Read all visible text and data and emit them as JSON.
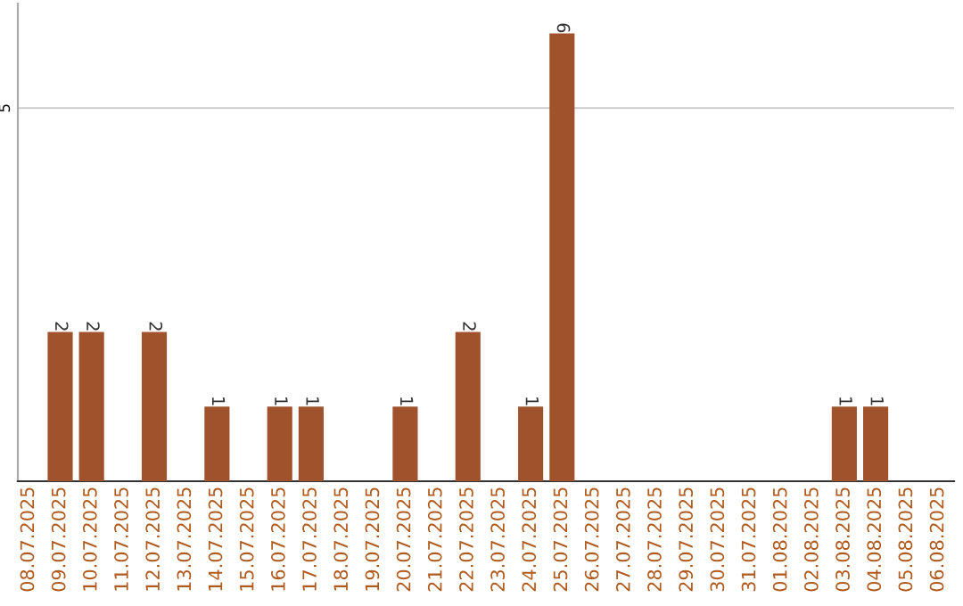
{
  "chart_data": {
    "type": "bar",
    "categories": [
      "08.07.2025",
      "09.07.2025",
      "10.07.2025",
      "11.07.2025",
      "12.07.2025",
      "13.07.2025",
      "14.07.2025",
      "15.07.2025",
      "16.07.2025",
      "17.07.2025",
      "18.07.2025",
      "19.07.2025",
      "20.07.2025",
      "21.07.2025",
      "22.07.2025",
      "23.07.2025",
      "24.07.2025",
      "25.07.2025",
      "26.07.2025",
      "27.07.2025",
      "28.07.2025",
      "29.07.2025",
      "30.07.2025",
      "31.07.2025",
      "01.08.2025",
      "02.08.2025",
      "03.08.2025",
      "04.08.2025",
      "05.08.2025",
      "06.08.2025"
    ],
    "values": [
      0,
      2,
      2,
      0,
      2,
      0,
      1,
      0,
      1,
      1,
      0,
      0,
      1,
      0,
      2,
      0,
      1,
      6,
      0,
      0,
      0,
      0,
      0,
      0,
      0,
      0,
      1,
      1,
      0,
      0
    ],
    "value_labels": [
      null,
      "2",
      "2",
      null,
      "2",
      null,
      "1",
      null,
      "1",
      "1",
      null,
      null,
      "1",
      null,
      "2",
      null,
      "1",
      "6",
      null,
      null,
      null,
      null,
      null,
      null,
      null,
      null,
      "1",
      "1",
      null,
      null
    ],
    "color": "#a0522d",
    "ylim": [
      0,
      6.4
    ],
    "yticks": [
      5
    ],
    "grid": "y"
  }
}
